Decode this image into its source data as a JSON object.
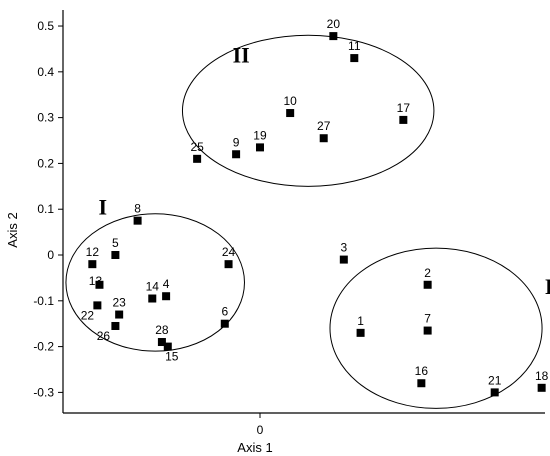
{
  "chart_data": {
    "type": "scatter",
    "xlabel": "Axis 1",
    "ylabel": "Axis 2",
    "xlim": [
      -0.47,
      0.68
    ],
    "ylim": [
      -0.345,
      0.535
    ],
    "x_ticks": [
      0
    ],
    "y_ticks": [
      -0.3,
      -0.2,
      -0.1,
      0,
      0.1,
      0.2,
      0.3,
      0.4,
      0.5
    ],
    "grid": false,
    "marker": "square",
    "marker_color": "#000000",
    "points": [
      {
        "label": "1",
        "x": 0.24,
        "y": -0.17
      },
      {
        "label": "2",
        "x": 0.4,
        "y": -0.065
      },
      {
        "label": "3",
        "x": 0.2,
        "y": -0.01
      },
      {
        "label": "4",
        "x": -0.224,
        "y": -0.09
      },
      {
        "label": "5",
        "x": -0.345,
        "y": 0.0
      },
      {
        "label": "6",
        "x": -0.084,
        "y": -0.15
      },
      {
        "label": "7",
        "x": 0.4,
        "y": -0.165
      },
      {
        "label": "8",
        "x": -0.292,
        "y": 0.075
      },
      {
        "label": "9",
        "x": -0.057,
        "y": 0.22
      },
      {
        "label": "10",
        "x": 0.072,
        "y": 0.31
      },
      {
        "label": "11",
        "x": 0.225,
        "y": 0.43
      },
      {
        "label": "12",
        "x": -0.4,
        "y": -0.02
      },
      {
        "label": "13",
        "x": -0.383,
        "y": -0.065
      },
      {
        "label": "14",
        "x": -0.257,
        "y": -0.095
      },
      {
        "label": "15",
        "x": -0.22,
        "y": -0.2
      },
      {
        "label": "16",
        "x": 0.385,
        "y": -0.28
      },
      {
        "label": "17",
        "x": 0.342,
        "y": 0.295
      },
      {
        "label": "18",
        "x": 0.672,
        "y": -0.29
      },
      {
        "label": "19",
        "x": 0.0,
        "y": 0.235
      },
      {
        "label": "20",
        "x": 0.175,
        "y": 0.478
      },
      {
        "label": "21",
        "x": 0.56,
        "y": -0.3
      },
      {
        "label": "22",
        "x": -0.388,
        "y": -0.11
      },
      {
        "label": "23",
        "x": -0.336,
        "y": -0.13
      },
      {
        "label": "24",
        "x": -0.075,
        "y": -0.02
      },
      {
        "label": "25",
        "x": -0.15,
        "y": 0.21
      },
      {
        "label": "26",
        "x": -0.345,
        "y": -0.155
      },
      {
        "label": "27",
        "x": 0.152,
        "y": 0.255
      },
      {
        "label": "28",
        "x": -0.234,
        "y": -0.19
      }
    ],
    "groups": [
      {
        "label": "I",
        "cx": -0.25,
        "cy": -0.06,
        "rx": 0.213,
        "ry": 0.15
      },
      {
        "label": "II",
        "cx": 0.115,
        "cy": 0.315,
        "rx": 0.3,
        "ry": 0.165
      },
      {
        "label": "III",
        "cx": 0.42,
        "cy": -0.16,
        "rx": 0.253,
        "ry": 0.175
      }
    ]
  }
}
